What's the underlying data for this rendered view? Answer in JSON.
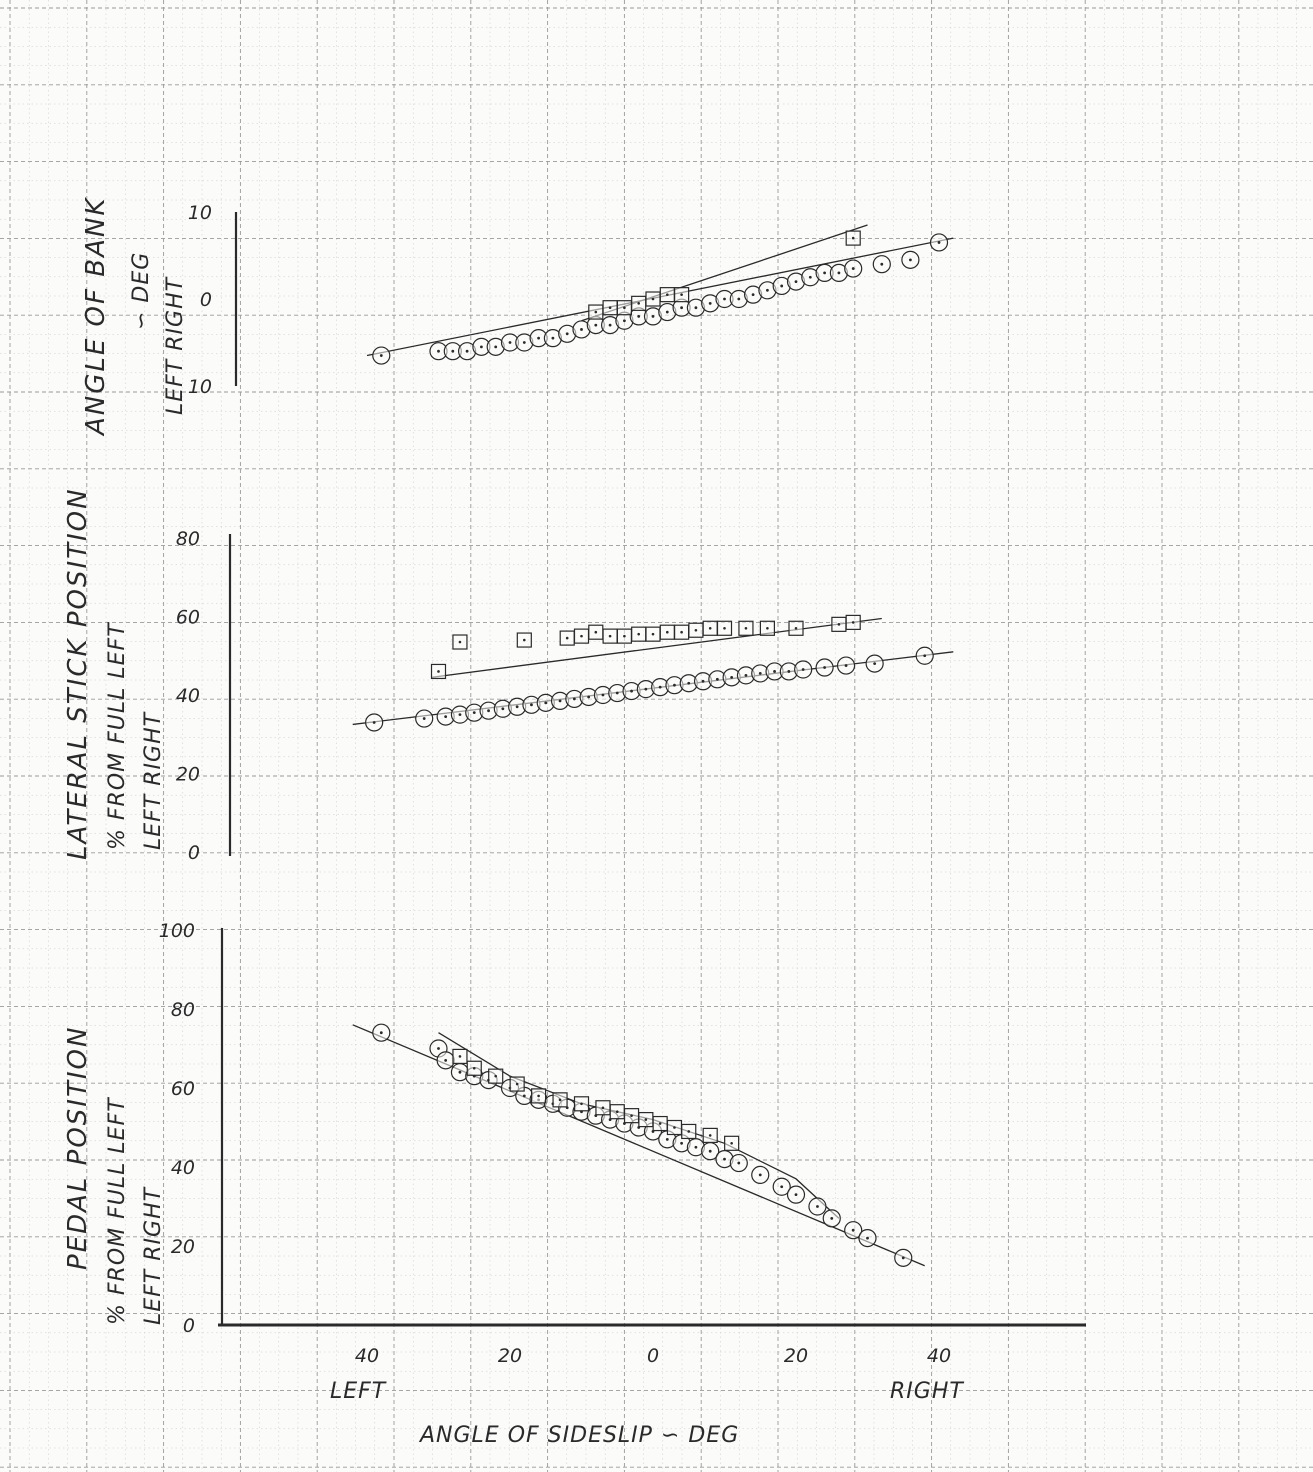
{
  "colors": {
    "paper": "#fbfbfa",
    "grid_minor": "#c9c9c9",
    "grid_major": "#9a9a9a",
    "ink": "#2a2a2a"
  },
  "chart_data": [
    {
      "type": "scatter",
      "title": "",
      "ylabel_lines": [
        "ANGLE OF BANK",
        "∽ DEG",
        "LEFT      RIGHT"
      ],
      "ylim": [
        -10,
        10
      ],
      "yticks": [
        "10",
        "0",
        "10"
      ],
      "y_direction_labels": [
        "LEFT",
        "RIGHT"
      ],
      "series": [
        {
          "marker": "circle",
          "x": [
            -38,
            -30,
            -28,
            -26,
            -24,
            -22,
            -20,
            -18,
            -16,
            -14,
            -12,
            -10,
            -8,
            -6,
            -4,
            -2,
            0,
            2,
            4,
            6,
            8,
            10,
            12,
            14,
            16,
            18,
            20,
            22,
            24,
            26,
            28,
            32,
            36,
            40
          ],
          "y": [
            -6.5,
            -6,
            -6,
            -6,
            -5.5,
            -5.5,
            -5,
            -5,
            -4.5,
            -4.5,
            -4,
            -3.5,
            -3,
            -3,
            -2.5,
            -2,
            -2,
            -1.5,
            -1,
            -1,
            -0.5,
            0,
            0,
            0.5,
            1,
            1.5,
            2,
            2.5,
            3,
            3,
            3.5,
            4,
            4.5,
            6.5
          ]
        },
        {
          "marker": "square",
          "x": [
            -8,
            -6,
            -4,
            -2,
            0,
            2,
            4,
            28
          ],
          "y": [
            -1.5,
            -1,
            -1,
            -0.5,
            0,
            0.5,
            0.5,
            7
          ]
        }
      ],
      "fit_lines": [
        {
          "x": [
            -40,
            42
          ],
          "y": [
            -6.5,
            7
          ]
        },
        {
          "x": [
            -10,
            30
          ],
          "y": [
            -2.5,
            8.5
          ]
        }
      ]
    },
    {
      "type": "scatter",
      "title": "",
      "ylabel_lines": [
        "LATERAL STICK POSITION",
        "% FROM FULL LEFT",
        "LEFT      RIGHT"
      ],
      "ylim": [
        0,
        80
      ],
      "yticks": [
        "80",
        "60",
        "40",
        "20",
        "0"
      ],
      "y_direction_labels": [
        "LEFT",
        "RIGHT"
      ],
      "series": [
        {
          "marker": "circle",
          "x": [
            -39,
            -32,
            -29,
            -27,
            -25,
            -23,
            -21,
            -19,
            -17,
            -15,
            -13,
            -11,
            -9,
            -7,
            -5,
            -3,
            -1,
            1,
            3,
            5,
            7,
            9,
            11,
            13,
            15,
            17,
            19,
            21,
            24,
            27,
            31,
            38
          ],
          "y": [
            33,
            34,
            34.5,
            35,
            35.5,
            36,
            36.5,
            37,
            37.5,
            38,
            38.5,
            39,
            39.5,
            40,
            40.5,
            41,
            41.5,
            42,
            42.5,
            43,
            43.5,
            44,
            44.5,
            45,
            45.5,
            46,
            46,
            46.5,
            47,
            47.5,
            48,
            50
          ]
        },
        {
          "marker": "square",
          "x": [
            -30,
            -27,
            -18,
            -12,
            -10,
            -8,
            -6,
            -4,
            -2,
            0,
            2,
            4,
            6,
            8,
            10,
            13,
            16,
            20,
            26,
            28
          ],
          "y": [
            46,
            53.5,
            54,
            54.5,
            55,
            56,
            55,
            55,
            55.5,
            55.5,
            56,
            56,
            56.5,
            57,
            57,
            57,
            57,
            57,
            58,
            58.5
          ]
        }
      ],
      "fit_lines": [
        {
          "x": [
            -42,
            42
          ],
          "y": [
            32.5,
            51
          ]
        },
        {
          "x": [
            -31,
            32
          ],
          "y": [
            44.5,
            59.5
          ]
        }
      ]
    },
    {
      "type": "scatter",
      "title": "",
      "ylabel_lines": [
        "PEDAL POSITION",
        "% FROM FULL LEFT",
        "LEFT      RIGHT"
      ],
      "ylim": [
        0,
        100
      ],
      "yticks": [
        "100",
        "80",
        "60",
        "40",
        "20",
        "0"
      ],
      "y_direction_labels": [
        "LEFT",
        "RIGHT"
      ],
      "xlim": [
        -45,
        60
      ],
      "xticks": [
        "40",
        "20",
        "0",
        "20",
        "40"
      ],
      "x_direction_labels": [
        "LEFT",
        "RIGHT"
      ],
      "xlabel": "ANGLE OF SIDESLIP ∽ DEG",
      "series": [
        {
          "marker": "circle",
          "x": [
            -38,
            -30,
            -29,
            -27,
            -25,
            -23,
            -20,
            -18,
            -16,
            -14,
            -12,
            -10,
            -8,
            -6,
            -4,
            -2,
            0,
            2,
            4,
            6,
            8,
            10,
            12,
            15,
            18,
            20,
            23,
            25,
            28,
            30,
            35
          ],
          "y": [
            74,
            70,
            67,
            64,
            63,
            62,
            60,
            58,
            57,
            56,
            55,
            54,
            53,
            52,
            51,
            50,
            49,
            47,
            46,
            45,
            44,
            42,
            41,
            38,
            35,
            33,
            30,
            27,
            24,
            22,
            17
          ]
        },
        {
          "marker": "square",
          "x": [
            -27,
            -25,
            -22,
            -19,
            -16,
            -13,
            -10,
            -7,
            -5,
            -3,
            -1,
            1,
            3,
            5,
            8,
            11
          ],
          "y": [
            68,
            65,
            63,
            61,
            58,
            57,
            56,
            55,
            54,
            53,
            52,
            51,
            50,
            49,
            48,
            46
          ]
        }
      ],
      "fit_lines": [
        {
          "x": [
            -42,
            38
          ],
          "y": [
            76,
            15
          ]
        },
        {
          "x": [
            -30,
            -20,
            -10,
            0,
            10,
            20,
            26
          ],
          "y": [
            74,
            63,
            56,
            52,
            46,
            37,
            27
          ]
        }
      ]
    }
  ]
}
